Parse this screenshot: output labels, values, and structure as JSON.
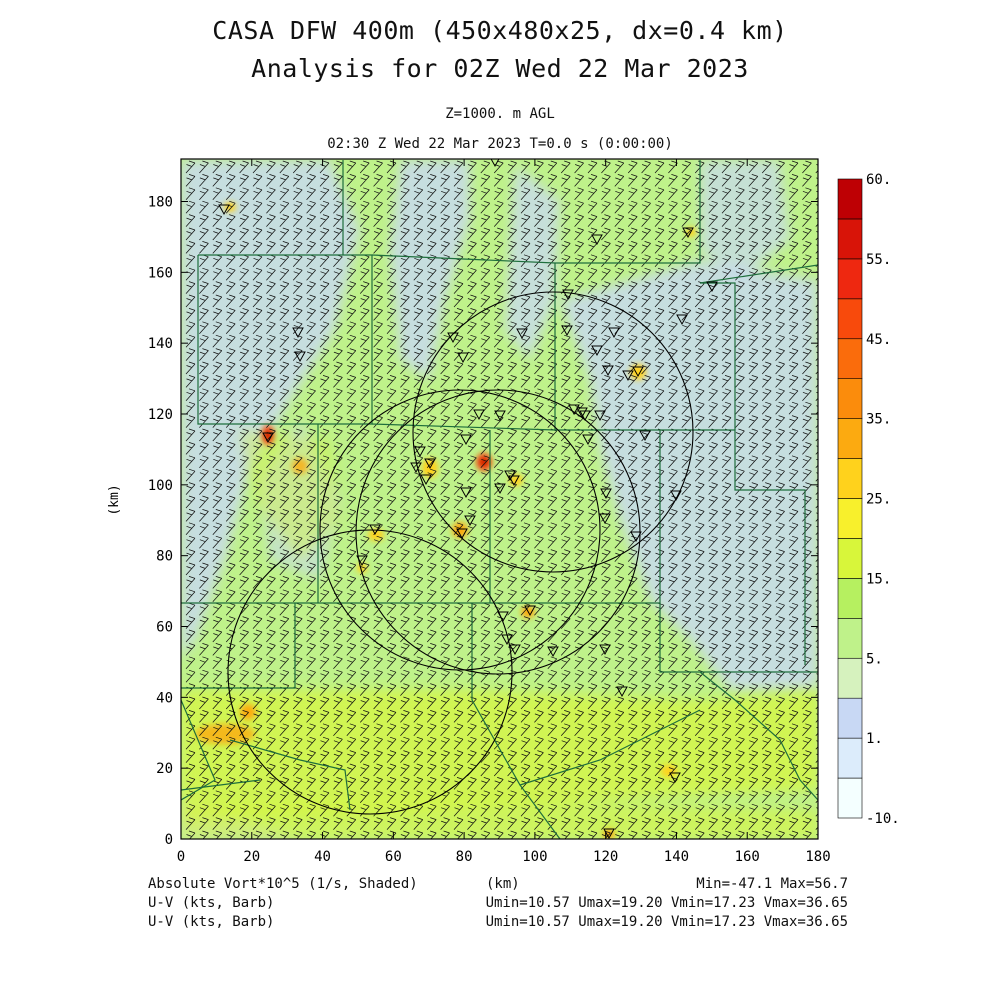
{
  "header": {
    "title_line1": "CASA DFW 400m (450x480x25, dx=0.4 km)",
    "title_line2": "Analysis for 02Z Wed 22 Mar 2023",
    "level": "Z=1000. m AGL",
    "valid_time": "02:30 Z Wed 22 Mar 2023    T=0.0 s (0:00:00)"
  },
  "axes": {
    "x_ticks": [
      "0",
      "20",
      "40",
      "60",
      "80",
      "100",
      "120",
      "140",
      "160",
      "180"
    ],
    "y_ticks": [
      "0",
      "20",
      "40",
      "60",
      "80",
      "100",
      "120",
      "140",
      "160",
      "180"
    ],
    "x_values": [
      0,
      20,
      40,
      60,
      80,
      100,
      120,
      140,
      160,
      180
    ],
    "y_values": [
      0,
      20,
      40,
      60,
      80,
      100,
      120,
      140,
      160,
      180
    ],
    "x_range": [
      0,
      180
    ],
    "y_range": [
      0,
      192
    ],
    "ylabel": "(km)"
  },
  "colorbar": {
    "labels": [
      "60.",
      "55.",
      "45.",
      "35.",
      "25.",
      "15.",
      "5.",
      "1.",
      "-10."
    ],
    "colors": [
      "#f4ffff",
      "#dcecfb",
      "#c8d8f4",
      "#d6f2be",
      "#bff28a",
      "#b6f060",
      "#d8f63a",
      "#f8f02c",
      "#ffd21c",
      "#fcaa10",
      "#fb8c0c",
      "#fa6c0c",
      "#f84a0c",
      "#ee2810",
      "#d81408",
      "#be0004"
    ]
  },
  "footer": {
    "field1": "Absolute Vort*10^5 (1/s, Shaded)",
    "xlabel": "(km)",
    "minmax": "Min=-47.1 Max=56.7",
    "field2": "U-V (kts, Barb)",
    "uv_stats": "Umin=10.57 Umax=19.20 Vmin=17.23 Vmax=36.65",
    "field3": "U-V (kts, Barb)",
    "uv_stats2": "Umin=10.57 Umax=19.20 Vmin=17.23 Vmax=36.65"
  },
  "colors": {
    "background": "#ffffff",
    "frame": "#000000",
    "county_lines": "#1e6e3c",
    "base_field": "#bff28a",
    "low_vort": "#c8d8f4"
  }
}
